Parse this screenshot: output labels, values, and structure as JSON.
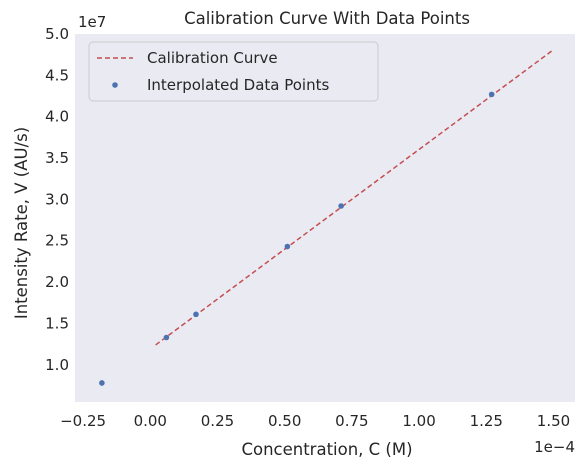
{
  "chart_data": {
    "type": "line",
    "title": "Calibration Curve With Data Points",
    "xlabel": "Concentration, C (M)",
    "ylabel": "Intensity Rate, V (AU/s)",
    "x_offset_label": "1e−4",
    "y_offset_label": "1e7",
    "x_scale_factor": 0.0001,
    "y_scale_factor": 10000000,
    "xlim": [
      -0.28,
      1.58
    ],
    "ylim": [
      0.55,
      5.0
    ],
    "x_ticks": [
      -0.25,
      0.0,
      0.25,
      0.5,
      0.75,
      1.0,
      1.25,
      1.5
    ],
    "x_tick_labels": [
      "−0.25",
      "0.00",
      "0.25",
      "0.50",
      "0.75",
      "1.00",
      "1.25",
      "1.50"
    ],
    "y_ticks": [
      1.0,
      1.5,
      2.0,
      2.5,
      3.0,
      3.5,
      4.0,
      4.5,
      5.0
    ],
    "y_tick_labels": [
      "1.0",
      "1.5",
      "2.0",
      "2.5",
      "3.0",
      "3.5",
      "4.0",
      "4.5",
      "5.0"
    ],
    "grid": false,
    "background": "#eaeaf2",
    "legend_position": "upper-left",
    "series": [
      {
        "name": "Calibration Curve",
        "kind": "line",
        "style": "dashed",
        "color": "#c44e52",
        "x": [
          0.02,
          1.5
        ],
        "y": [
          1.24,
          4.81
        ]
      },
      {
        "name": "Interpolated Data Points",
        "kind": "scatter",
        "color": "#4c72b0",
        "x": [
          -0.18,
          0.06,
          0.17,
          0.51,
          0.71,
          1.27
        ],
        "y": [
          0.78,
          1.33,
          1.61,
          2.43,
          2.92,
          4.27
        ]
      }
    ]
  }
}
